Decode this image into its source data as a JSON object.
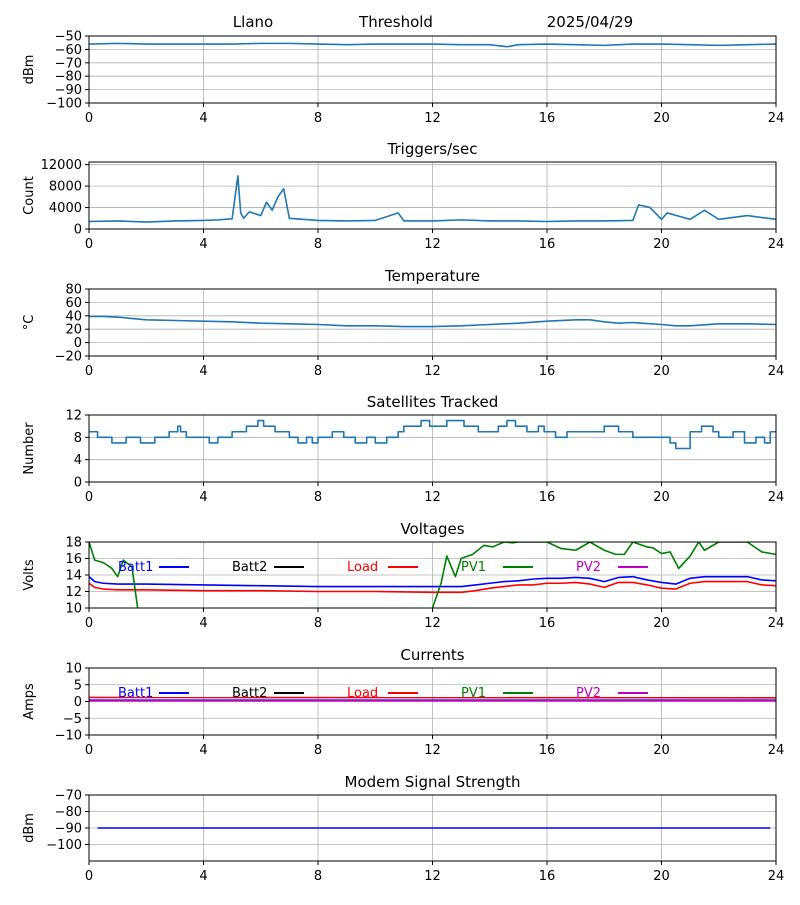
{
  "header": {
    "station": "Llano",
    "label": "Threshold",
    "date": "2025/04/29"
  },
  "colors": {
    "default": "#1f77b4",
    "batt1": "#0000ff",
    "batt2": "#000000",
    "load": "#ff0000",
    "pv1": "#008000",
    "pv2": "#bf00bf",
    "grid": "#b0b0b0"
  },
  "chart_data": [
    {
      "id": "threshold",
      "type": "line",
      "title": "",
      "xlabel": "",
      "ylabel": "dBm",
      "xlim": [
        0,
        24
      ],
      "ylim": [
        -100,
        -50
      ],
      "xticks": [
        0,
        4,
        8,
        12,
        16,
        20,
        24
      ],
      "yticks": [
        -50,
        -60,
        -70,
        -80,
        -90,
        -100
      ],
      "grid": true,
      "series": [
        {
          "color": "#1f77b4",
          "x": [
            0,
            1,
            2,
            3,
            4,
            5,
            6,
            7,
            8,
            9,
            10,
            11,
            12,
            13,
            14,
            14.6,
            15,
            16,
            17,
            18,
            19,
            20,
            21,
            22,
            23,
            24
          ],
          "y": [
            -56,
            -55.5,
            -56,
            -56,
            -56,
            -56,
            -55.5,
            -55.5,
            -56,
            -56.5,
            -56,
            -56,
            -56,
            -56.5,
            -56.5,
            -58,
            -56.5,
            -56,
            -56.5,
            -57,
            -56,
            -56,
            -56.5,
            -57,
            -56.5,
            -56
          ]
        }
      ]
    },
    {
      "id": "triggers",
      "type": "line",
      "title": "Triggers/sec",
      "xlabel": "",
      "ylabel": "Count",
      "xlim": [
        0,
        24
      ],
      "ylim": [
        0,
        12500
      ],
      "xticks": [
        0,
        4,
        8,
        12,
        16,
        20,
        24
      ],
      "yticks": [
        0,
        4000,
        8000,
        12000
      ],
      "grid": true,
      "series": [
        {
          "color": "#1f77b4",
          "x": [
            0,
            1,
            2,
            3,
            4,
            4.5,
            5,
            5.2,
            5.3,
            5.4,
            5.6,
            6,
            6.2,
            6.4,
            6.6,
            6.8,
            7,
            8,
            9,
            10,
            10.8,
            11,
            12,
            13,
            14,
            15,
            16,
            17,
            18,
            19,
            19.2,
            19.6,
            20,
            20.2,
            21,
            21.5,
            22,
            23,
            24
          ],
          "y": [
            1400,
            1500,
            1300,
            1500,
            1600,
            1700,
            1900,
            9900,
            3000,
            2000,
            3200,
            2500,
            5000,
            3500,
            6000,
            7500,
            2000,
            1600,
            1500,
            1600,
            3000,
            1500,
            1500,
            1700,
            1500,
            1500,
            1400,
            1500,
            1500,
            1600,
            4500,
            4000,
            1800,
            3000,
            1800,
            3500,
            1800,
            2500,
            1800
          ]
        }
      ]
    },
    {
      "id": "temperature",
      "type": "line",
      "title": "Temperature",
      "xlabel": "",
      "ylabel": "°C",
      "xlim": [
        0,
        24
      ],
      "ylim": [
        -20,
        80
      ],
      "xticks": [
        0,
        4,
        8,
        12,
        16,
        20,
        24
      ],
      "yticks": [
        -20,
        0,
        20,
        40,
        60,
        80
      ],
      "grid": true,
      "series": [
        {
          "color": "#1f77b4",
          "x": [
            0,
            0.5,
            1,
            2,
            3,
            4,
            5,
            6,
            7,
            8,
            9,
            10,
            11,
            12,
            13,
            14,
            15,
            16,
            17,
            17.5,
            18,
            18.5,
            19,
            20,
            20.5,
            21,
            22,
            23,
            24
          ],
          "y": [
            39,
            39,
            38,
            34,
            33,
            32,
            31,
            29,
            28,
            27,
            25,
            25,
            24,
            24,
            25,
            27,
            29,
            32,
            34,
            34,
            31,
            29,
            30,
            27,
            25,
            25,
            28,
            28,
            27
          ]
        }
      ]
    },
    {
      "id": "satellites",
      "type": "line",
      "title": "Satellites Tracked",
      "xlabel": "",
      "ylabel": "Number",
      "xlim": [
        0,
        24
      ],
      "ylim": [
        0,
        12
      ],
      "xticks": [
        0,
        4,
        8,
        12,
        16,
        20,
        24
      ],
      "yticks": [
        0,
        4,
        8,
        12
      ],
      "grid": true,
      "series": [
        {
          "color": "#1f77b4",
          "step": true,
          "x": [
            0,
            0.3,
            0.8,
            1.3,
            1.8,
            2.3,
            2.8,
            3.1,
            3.2,
            3.4,
            4.2,
            4.5,
            5,
            5.5,
            5.9,
            6.1,
            6.5,
            7,
            7.3,
            7.6,
            7.8,
            8,
            8.5,
            8.9,
            9.3,
            9.7,
            10,
            10.4,
            10.8,
            11,
            11.6,
            11.9,
            12.5,
            13.1,
            13.6,
            14.3,
            14.6,
            14.9,
            15.3,
            15.7,
            15.9,
            16.3,
            16.7,
            17.3,
            18,
            18.5,
            19,
            19.5,
            19.8,
            20.3,
            20.5,
            21,
            21.4,
            21.8,
            22,
            22.5,
            22.9,
            23.3,
            23.6,
            23.8
          ],
          "y": [
            9,
            8,
            7,
            8,
            7,
            8,
            9,
            10,
            9,
            8,
            7,
            8,
            9,
            10,
            11,
            10,
            9,
            8,
            7,
            8,
            7,
            8,
            9,
            8,
            7,
            8,
            7,
            8,
            9,
            10,
            11,
            10,
            11,
            10,
            9,
            10,
            11,
            10,
            9,
            10,
            9,
            8,
            9,
            9,
            10,
            9,
            8,
            8,
            8,
            7,
            6,
            9,
            10,
            9,
            8,
            9,
            7,
            8,
            7,
            9
          ]
        }
      ]
    },
    {
      "id": "voltages",
      "type": "line",
      "title": "Voltages",
      "xlabel": "",
      "ylabel": "Volts",
      "xlim": [
        0,
        24
      ],
      "ylim": [
        10,
        18
      ],
      "xticks": [
        0,
        4,
        8,
        12,
        16,
        20,
        24
      ],
      "yticks": [
        10,
        12,
        14,
        16,
        18
      ],
      "grid": true,
      "legend": [
        "Batt1",
        "Batt2",
        "Load",
        "PV1",
        "PV2"
      ],
      "series": [
        {
          "name": "Batt1",
          "color": "#0000ff",
          "x": [
            0,
            0.2,
            0.5,
            1,
            2,
            4,
            6,
            8,
            10,
            12,
            13,
            13.5,
            14,
            14.5,
            15,
            15.5,
            16,
            16.5,
            17,
            17.5,
            18,
            18.5,
            19,
            19.5,
            20,
            20.5,
            21,
            21.5,
            22,
            23,
            23.5,
            24
          ],
          "y": [
            13.8,
            13.2,
            13.0,
            12.9,
            12.9,
            12.8,
            12.7,
            12.6,
            12.6,
            12.6,
            12.6,
            12.8,
            13.0,
            13.2,
            13.3,
            13.5,
            13.6,
            13.6,
            13.7,
            13.6,
            13.2,
            13.7,
            13.8,
            13.4,
            13.1,
            12.9,
            13.6,
            13.8,
            13.8,
            13.8,
            13.4,
            13.3
          ]
        },
        {
          "name": "Load",
          "color": "#ff0000",
          "x": [
            0,
            0.2,
            0.5,
            1,
            2,
            4,
            6,
            8,
            10,
            12,
            13,
            13.5,
            14,
            14.5,
            15,
            15.5,
            16,
            16.5,
            17,
            17.5,
            18,
            18.5,
            19,
            19.5,
            20,
            20.5,
            21,
            21.5,
            22,
            23,
            23.5,
            24
          ],
          "y": [
            13.0,
            12.5,
            12.3,
            12.2,
            12.2,
            12.1,
            12.1,
            12.0,
            12.0,
            11.9,
            11.9,
            12.1,
            12.4,
            12.6,
            12.8,
            12.8,
            13.0,
            13.0,
            13.1,
            12.9,
            12.5,
            13.1,
            13.1,
            12.8,
            12.4,
            12.3,
            13.0,
            13.2,
            13.2,
            13.2,
            12.8,
            12.7
          ]
        },
        {
          "name": "PV1",
          "color": "#008000",
          "segments": [
            {
              "x": [
                0,
                0.2,
                0.5,
                0.8,
                1.0,
                1.2,
                1.5,
                1.7
              ],
              "y": [
                18,
                15.8,
                15.5,
                14.8,
                13.8,
                15.8,
                15.0,
                10
              ]
            },
            {
              "x": [
                12,
                12.3,
                12.5,
                12.8,
                13,
                13.4,
                13.8,
                14.1,
                14.5,
                14.8,
                15,
                16,
                16.5,
                17,
                17.5,
                18,
                18.4,
                18.7,
                19,
                19.5,
                19.7,
                20,
                20.3,
                20.6,
                21,
                21.3,
                21.5,
                22,
                23,
                23.5,
                24
              ],
              "y": [
                10,
                13.0,
                16.3,
                13.8,
                16.0,
                16.5,
                17.6,
                17.4,
                18,
                17.9,
                18,
                18,
                17.2,
                17.0,
                18,
                17.0,
                16.5,
                16.5,
                18,
                17.4,
                17.3,
                16.6,
                16.8,
                14.8,
                16.3,
                18,
                17,
                18,
                18,
                16.8,
                16.5
              ]
            }
          ]
        },
        {
          "name": "Batt2",
          "color": "#000000",
          "x": [],
          "y": []
        },
        {
          "name": "PV2",
          "color": "#bf00bf",
          "x": [],
          "y": []
        }
      ]
    },
    {
      "id": "currents",
      "type": "line",
      "title": "Currents",
      "xlabel": "",
      "ylabel": "Amps",
      "xlim": [
        0,
        24
      ],
      "ylim": [
        -10,
        10
      ],
      "xticks": [
        0,
        4,
        8,
        12,
        16,
        20,
        24
      ],
      "yticks": [
        -10,
        -5,
        0,
        5,
        10
      ],
      "grid": true,
      "legend": [
        "Batt1",
        "Batt2",
        "Load",
        "PV1",
        "PV2"
      ],
      "series": [
        {
          "name": "Load",
          "color": "#ff0000",
          "x": [
            0,
            24
          ],
          "y": [
            1.2,
            1.1
          ]
        },
        {
          "name": "Batt1",
          "color": "#0000ff",
          "x": [
            0,
            24
          ],
          "y": [
            0.4,
            0.4
          ]
        },
        {
          "name": "PV2",
          "color": "#bf00bf",
          "x": [
            0,
            24
          ],
          "y": [
            0.2,
            0.2
          ]
        },
        {
          "name": "Batt2",
          "color": "#000000",
          "x": [],
          "y": []
        },
        {
          "name": "PV1",
          "color": "#008000",
          "x": [],
          "y": []
        }
      ]
    },
    {
      "id": "modem",
      "type": "line",
      "title": "Modem Signal Strength",
      "xlabel": "",
      "ylabel": "dBm",
      "xlim": [
        0,
        24
      ],
      "ylim": [
        -110,
        -70
      ],
      "xticks": [
        0,
        4,
        8,
        12,
        16,
        20,
        24
      ],
      "yticks": [
        -70,
        -80,
        -90,
        -100
      ],
      "grid": true,
      "series": [
        {
          "color": "#0000ff",
          "x": [
            0.3,
            23.8
          ],
          "y": [
            -90,
            -90
          ]
        }
      ]
    }
  ]
}
